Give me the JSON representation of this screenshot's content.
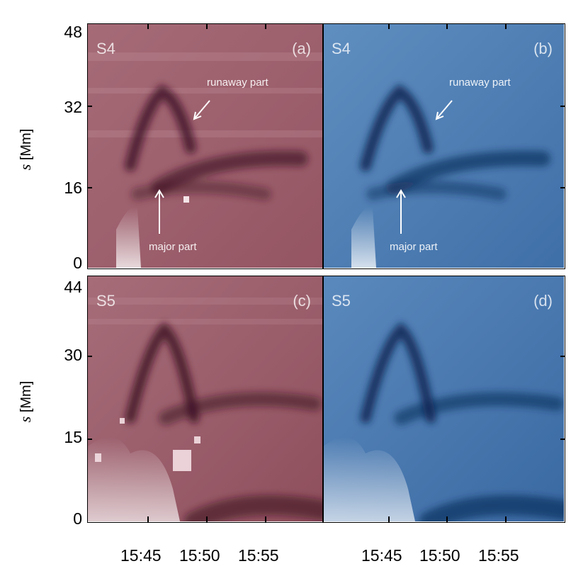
{
  "figure": {
    "colors": {
      "red_panel": "#a0626f",
      "blue_panel": "#4c79ad",
      "dark_red": "#4a1c2c",
      "dark_blue": "#0c2b5a",
      "axis": "#000000"
    },
    "top_row": {
      "y_axis_label_var": "s",
      "y_axis_label_unit": "[Mm]",
      "y_ticks": [
        "48",
        "32",
        "16",
        "0"
      ],
      "panel_a": {
        "slit": "S4",
        "tag": "(a)",
        "annot_upper": "runaway part",
        "annot_lower": "major part"
      },
      "panel_b": {
        "slit": "S4",
        "tag": "(b)",
        "annot_upper": "runaway part",
        "annot_lower": "major part"
      }
    },
    "bottom_row": {
      "y_axis_label_var": "s",
      "y_axis_label_unit": "[Mm]",
      "y_ticks": [
        "44",
        "30",
        "15",
        "0"
      ],
      "panel_c": {
        "slit": "S5",
        "tag": "(c)"
      },
      "panel_d": {
        "slit": "S5",
        "tag": "(d)"
      }
    },
    "x_ticks": [
      "15:45",
      "15:50",
      "15:55"
    ]
  }
}
